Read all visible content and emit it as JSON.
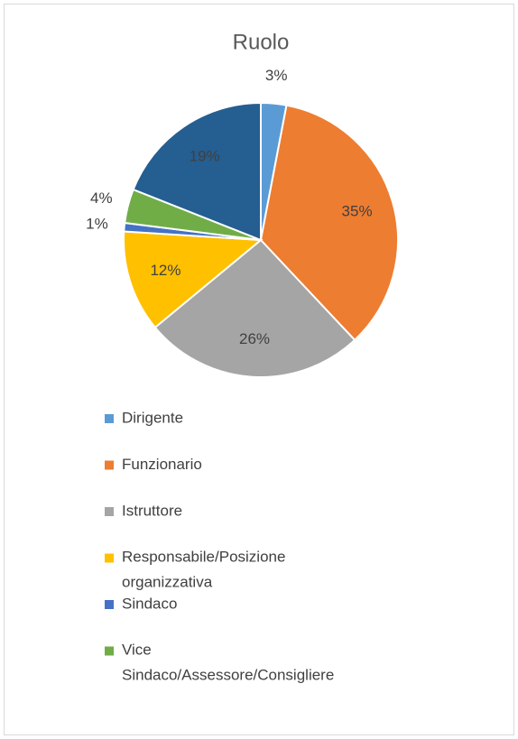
{
  "chart_data": {
    "type": "pie",
    "title": "Ruolo",
    "categories": [
      "Dirigente",
      "Funzionario",
      "Istruttore",
      "Responsabile/Posizione organizzativa",
      "Sindaco",
      "Vice Sindaco/Assessore/Consigliere",
      null
    ],
    "values": [
      3,
      35,
      26,
      12,
      1,
      4,
      19
    ],
    "value_labels": [
      "3%",
      "35%",
      "26%",
      "12%",
      "1%",
      "4%",
      "19%"
    ],
    "colors": [
      "#5b9bd5",
      "#ed7d31",
      "#a5a5a5",
      "#ffc000",
      "#4472c4",
      "#70ad47",
      "#255e91"
    ]
  }
}
